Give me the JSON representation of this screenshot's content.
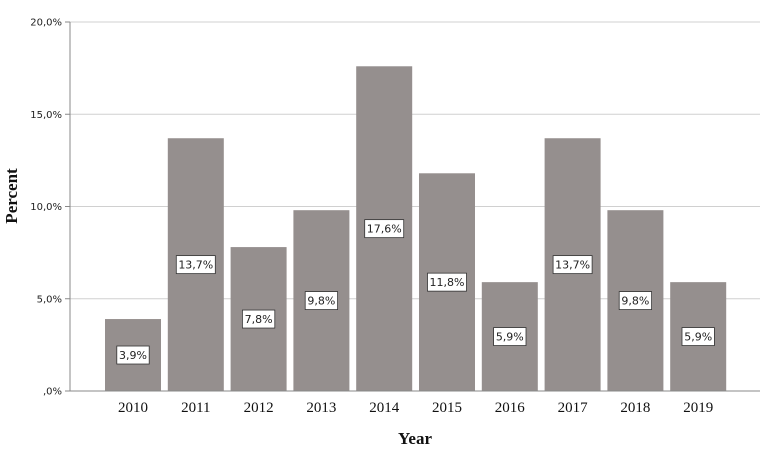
{
  "chart_data": {
    "type": "bar",
    "categories": [
      "2010",
      "2011",
      "2012",
      "2013",
      "2014",
      "2015",
      "2016",
      "2017",
      "2018",
      "2019"
    ],
    "values": [
      3.9,
      13.7,
      7.8,
      9.8,
      17.6,
      11.8,
      5.9,
      13.7,
      9.8,
      5.9
    ],
    "data_labels": [
      "3,9%",
      "13,7%",
      "7,8%",
      "9,8%",
      "17,6%",
      "11,8%",
      "5,9%",
      "13,7%",
      "9,8%",
      "5,9%"
    ],
    "xlabel": "Year",
    "ylabel": "Percent",
    "ylim": [
      0,
      20
    ],
    "yticks": [
      0,
      5,
      10,
      15,
      20
    ],
    "ytick_labels": [
      ",0%",
      "5,0%",
      "10,0%",
      "15,0%",
      "20,0%"
    ],
    "grid": true,
    "bar_color": "#958f8e",
    "grid_color": "#d0d0d0"
  }
}
